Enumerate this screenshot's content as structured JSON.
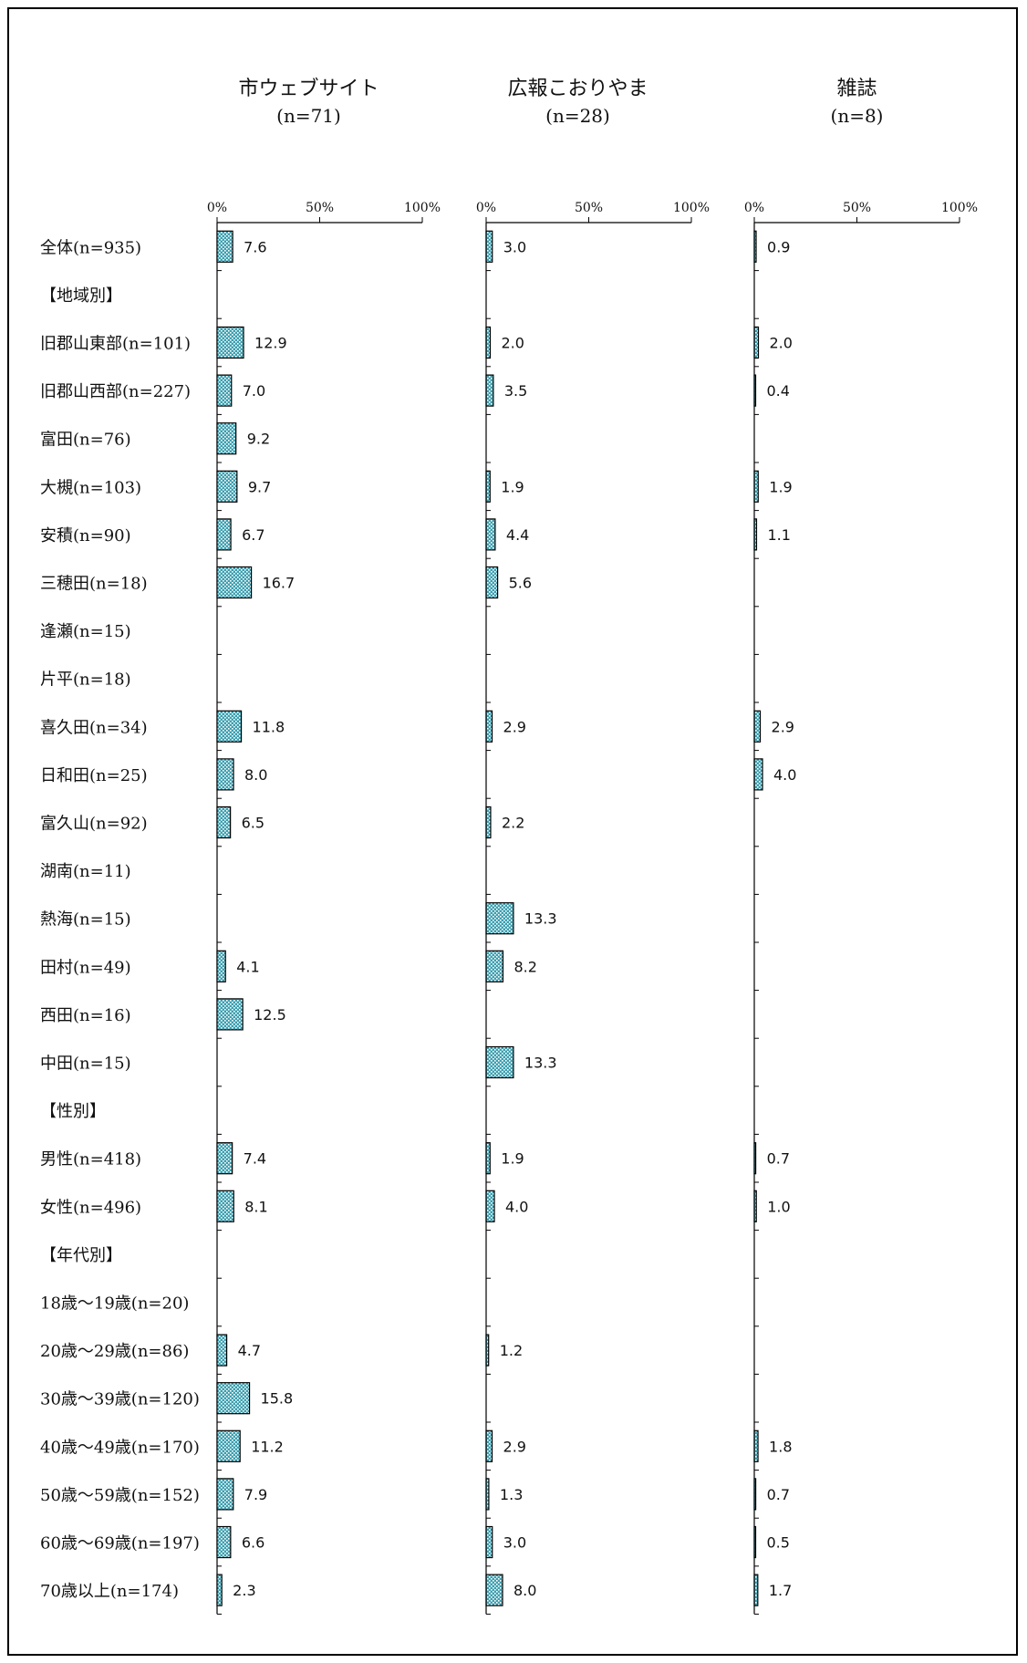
{
  "chart_data": {
    "type": "bar",
    "orientation": "horizontal",
    "panels": [
      {
        "title": "市ウェブサイト",
        "subtitle": "(n=71)"
      },
      {
        "title": "広報こおりやま",
        "subtitle": "(n=28)"
      },
      {
        "title": "雑誌",
        "subtitle": "(n=8)"
      }
    ],
    "axis": {
      "xlim": [
        0,
        100
      ],
      "ticks": [
        "0%",
        "50%",
        "100%"
      ]
    },
    "categories": [
      "全体(n=935)",
      "【地域別】",
      "旧郡山東部(n=101)",
      "旧郡山西部(n=227)",
      "富田(n=76)",
      "大槻(n=103)",
      "安積(n=90)",
      "三穂田(n=18)",
      "逢瀬(n=15)",
      "片平(n=18)",
      "喜久田(n=34)",
      "日和田(n=25)",
      "富久山(n=92)",
      "湖南(n=11)",
      "熱海(n=15)",
      "田村(n=49)",
      "西田(n=16)",
      "中田(n=15)",
      "【性別】",
      "男性(n=418)",
      "女性(n=496)",
      "【年代別】",
      "18歳～19歳(n=20)",
      "20歳～29歳(n=86)",
      "30歳～39歳(n=120)",
      "40歳～49歳(n=170)",
      "50歳～59歳(n=152)",
      "60歳～69歳(n=197)",
      "70歳以上(n=174)"
    ],
    "series": [
      {
        "name": "市ウェブサイト",
        "values": [
          7.6,
          null,
          12.9,
          7.0,
          9.2,
          9.7,
          6.7,
          16.7,
          null,
          null,
          11.8,
          8.0,
          6.5,
          null,
          null,
          4.1,
          12.5,
          null,
          null,
          7.4,
          8.1,
          null,
          null,
          4.7,
          15.8,
          11.2,
          7.9,
          6.6,
          2.3
        ]
      },
      {
        "name": "広報こおりやま",
        "values": [
          3.0,
          null,
          2.0,
          3.5,
          null,
          1.9,
          4.4,
          5.6,
          null,
          null,
          2.9,
          null,
          2.2,
          null,
          13.3,
          8.2,
          null,
          13.3,
          null,
          1.9,
          4.0,
          null,
          null,
          1.2,
          null,
          2.9,
          1.3,
          3.0,
          8.0
        ]
      },
      {
        "name": "雑誌",
        "values": [
          0.9,
          null,
          2.0,
          0.4,
          null,
          1.9,
          1.1,
          null,
          null,
          null,
          2.9,
          4.0,
          null,
          null,
          null,
          null,
          null,
          null,
          null,
          0.7,
          1.0,
          null,
          null,
          null,
          null,
          1.8,
          0.7,
          0.5,
          1.7
        ]
      }
    ],
    "bar_color": "#3b9fb0",
    "grid": false,
    "legend": "none"
  }
}
